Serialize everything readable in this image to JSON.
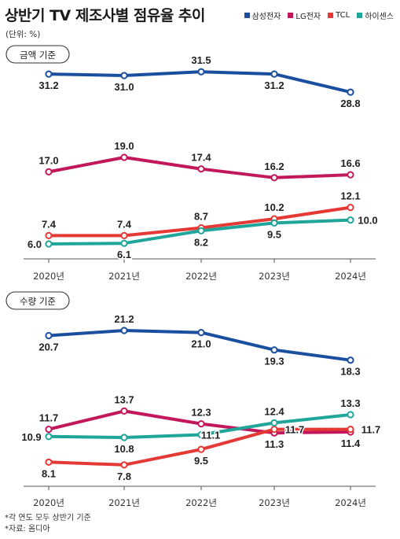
{
  "title": "상반기 TV 제조사별 점유율 추이",
  "unit": "(단위: %)",
  "legend": [
    {
      "name": "삼성전자",
      "color": "#1a4fa0"
    },
    {
      "name": "LG전자",
      "color": "#c2185b"
    },
    {
      "name": "TCL",
      "color": "#e53935"
    },
    {
      "name": "하이센스",
      "color": "#1fa59a"
    }
  ],
  "notes": [
    "*각 연도 모두 상반기 기준",
    "*자료: 옴디아"
  ],
  "chart_data": [
    {
      "type": "line",
      "title": "금액 기준",
      "categories": [
        "2020년",
        "2021년",
        "2022년",
        "2023년",
        "2024년"
      ],
      "series": [
        {
          "name": "삼성전자",
          "color": "#1a4fa0",
          "values": [
            31.2,
            31.0,
            31.5,
            31.2,
            28.8
          ]
        },
        {
          "name": "LG전자",
          "color": "#c2185b",
          "values": [
            17.0,
            19.0,
            17.4,
            16.2,
            16.6
          ]
        },
        {
          "name": "TCL",
          "color": "#e53935",
          "values": [
            7.4,
            7.4,
            8.7,
            10.2,
            12.1
          ]
        },
        {
          "name": "하이센스",
          "color": "#1fa59a",
          "values": [
            6.0,
            6.1,
            8.2,
            9.5,
            10.0
          ]
        }
      ]
    },
    {
      "type": "line",
      "title": "수량 기준",
      "categories": [
        "2020년",
        "2021년",
        "2022년",
        "2023년",
        "2024년"
      ],
      "series": [
        {
          "name": "삼성전자",
          "color": "#1a4fa0",
          "values": [
            20.7,
            21.2,
            21.0,
            19.3,
            18.3
          ]
        },
        {
          "name": "LG전자",
          "color": "#c2185b",
          "values": [
            11.7,
            13.7,
            12.3,
            11.3,
            11.4
          ]
        },
        {
          "name": "TCL",
          "color": "#e53935",
          "values": [
            8.1,
            7.8,
            9.5,
            11.7,
            11.7
          ]
        },
        {
          "name": "하이센스",
          "color": "#1fa59a",
          "values": [
            10.9,
            10.8,
            11.1,
            12.4,
            13.3
          ]
        }
      ]
    }
  ]
}
